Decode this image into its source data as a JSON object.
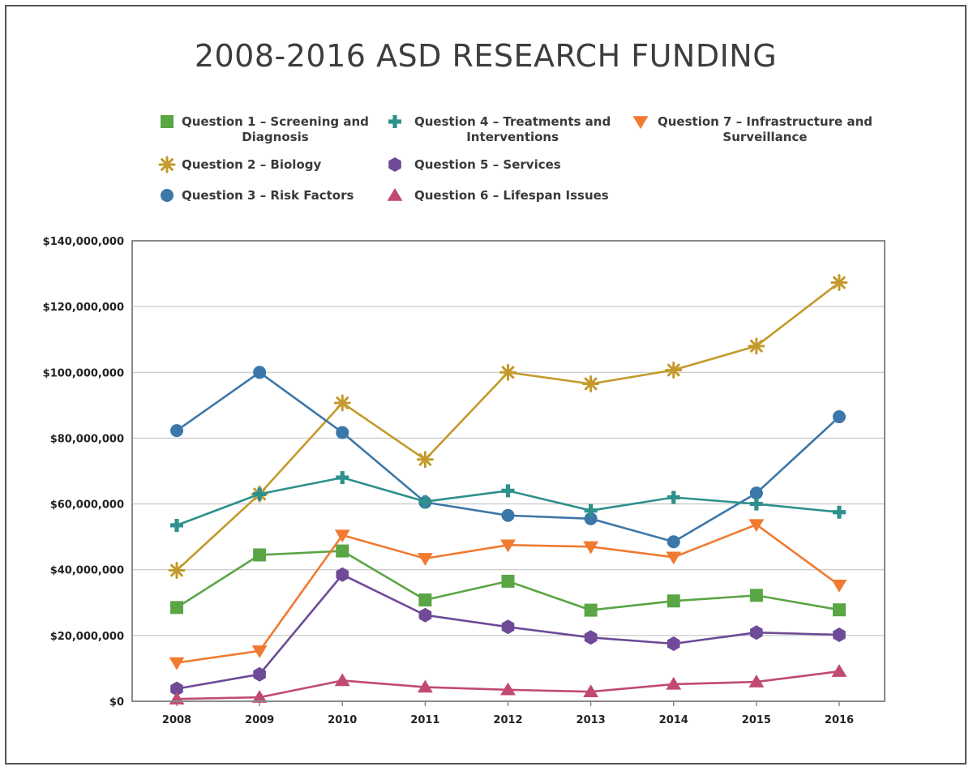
{
  "chart_data": {
    "type": "line",
    "title": "2008-2016 ASD RESEARCH FUNDING",
    "xlabel": "",
    "ylabel": "",
    "x": [
      "2008",
      "2009",
      "2010",
      "2011",
      "2012",
      "2013",
      "2014",
      "2015",
      "2016"
    ],
    "ylim": [
      0,
      140000000
    ],
    "yticks": [
      0,
      20000000,
      40000000,
      60000000,
      80000000,
      100000000,
      120000000,
      140000000
    ],
    "ytick_labels": [
      "$0",
      "$20,000,000",
      "$40,000,000",
      "$60,000,000",
      "$80,000,000",
      "$100,000,000",
      "$120,000,000",
      "$140,000,000"
    ],
    "grid": true,
    "legend_position": "top",
    "series": [
      {
        "name": [
          "Question 1 – Screening and",
          "Diagnosis"
        ],
        "color": "#5aa544",
        "marker": "square",
        "values": [
          28500000,
          44500000,
          45700000,
          30800000,
          36500000,
          27700000,
          30500000,
          32200000,
          27800000
        ]
      },
      {
        "name": [
          "Question 2 – Biology"
        ],
        "color": "#c39a2b",
        "marker": "asterisk",
        "values": [
          39800000,
          63000000,
          90700000,
          73500000,
          100000000,
          96500000,
          100700000,
          108000000,
          127300000
        ]
      },
      {
        "name": [
          "Question 3 – Risk Factors"
        ],
        "color": "#3b77a9",
        "marker": "circle",
        "values": [
          82300000,
          100000000,
          81700000,
          60500000,
          56500000,
          55500000,
          48500000,
          63300000,
          86500000
        ]
      },
      {
        "name": [
          "Question 4 – Treatments and",
          "Interventions"
        ],
        "color": "#2e918c",
        "marker": "plus",
        "values": [
          53500000,
          63000000,
          68000000,
          60700000,
          64000000,
          58000000,
          62000000,
          60000000,
          57500000
        ]
      },
      {
        "name": [
          "Question 5 – Services"
        ],
        "color": "#6e4a97",
        "marker": "hexagon",
        "values": [
          3800000,
          8200000,
          38500000,
          26200000,
          22600000,
          19400000,
          17500000,
          20900000,
          20200000
        ]
      },
      {
        "name": [
          "Question 6 – Lifespan Issues"
        ],
        "color": "#c14a73",
        "marker": "triangle",
        "values": [
          700000,
          1200000,
          6300000,
          4300000,
          3500000,
          2900000,
          5200000,
          5900000,
          9100000
        ]
      },
      {
        "name": [
          "Question 7 – Infrastructure and",
          "Surveillance"
        ],
        "color": "#f07a30",
        "marker": "triangle-down",
        "values": [
          11700000,
          15300000,
          50500000,
          43400000,
          47500000,
          47000000,
          43800000,
          53700000,
          35300000
        ]
      }
    ]
  }
}
